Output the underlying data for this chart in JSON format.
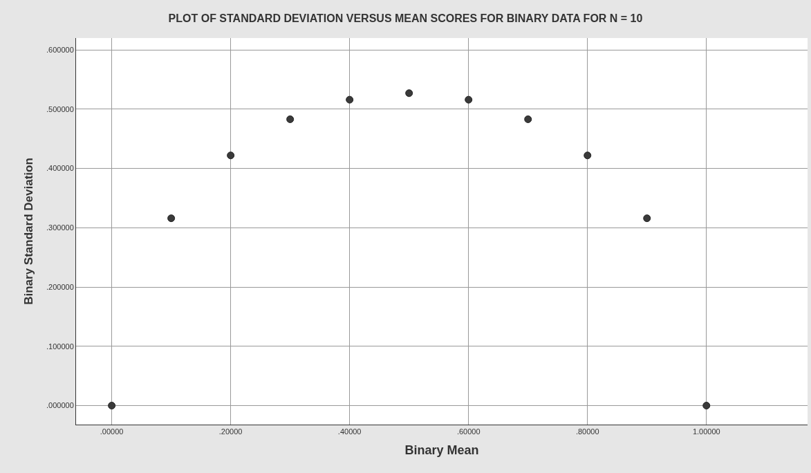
{
  "chart_data": {
    "type": "scatter",
    "title": "PLOT OF STANDARD DEVIATION VERSUS MEAN SCORES FOR BINARY DATA FOR N = 10",
    "xlabel": "Binary Mean",
    "ylabel": "Binary Standard Deviation",
    "x": [
      0,
      0.1,
      0.2,
      0.3,
      0.4,
      0.5,
      0.6,
      0.7,
      0.8,
      0.9,
      1.0
    ],
    "series": [
      {
        "color": "#3a3a3a",
        "values": [
          0,
          0.316,
          0.422,
          0.483,
          0.516,
          0.527,
          0.516,
          0.483,
          0.422,
          0.316,
          0
        ]
      }
    ],
    "xlim": [
      -0.06,
      1.17
    ],
    "ylim": [
      -0.032,
      0.62
    ],
    "xticks": [
      {
        "value": 0,
        "label": ".00000"
      },
      {
        "value": 0.2,
        "label": ".20000"
      },
      {
        "value": 0.4,
        "label": ".40000"
      },
      {
        "value": 0.6,
        "label": ".60000"
      },
      {
        "value": 0.8,
        "label": ".80000"
      },
      {
        "value": 1.0,
        "label": "1.00000"
      }
    ],
    "yticks": [
      {
        "value": 0,
        "label": ".000000"
      },
      {
        "value": 0.1,
        "label": ".100000"
      },
      {
        "value": 0.2,
        "label": ".200000"
      },
      {
        "value": 0.3,
        "label": ".300000"
      },
      {
        "value": 0.4,
        "label": ".400000"
      },
      {
        "value": 0.5,
        "label": ".500000"
      },
      {
        "value": 0.6,
        "label": ".600000"
      }
    ],
    "grid": true,
    "marker": "circle"
  }
}
